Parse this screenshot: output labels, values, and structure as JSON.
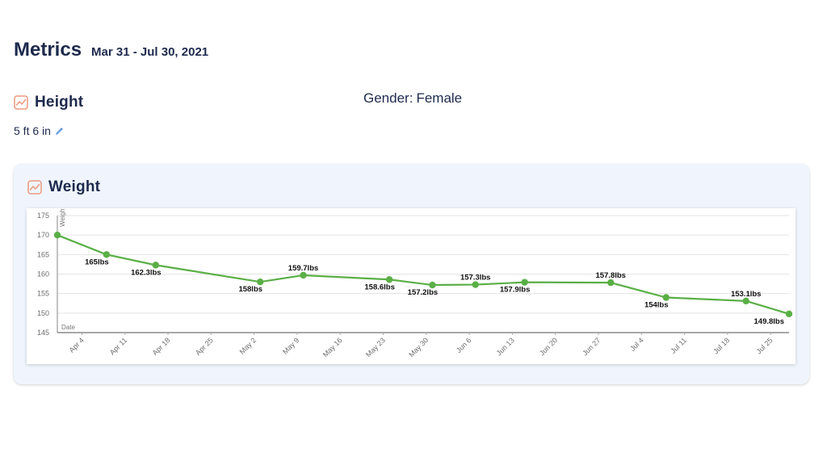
{
  "header": {
    "title": "Metrics",
    "date_range": "Mar 31 - Jul 30, 2021"
  },
  "height": {
    "title": "Height",
    "value": "5 ft 6 in",
    "icon": "line-chart-icon"
  },
  "gender": {
    "label": "Gender:",
    "value": "Female"
  },
  "weight": {
    "title": "Weight",
    "icon": "line-chart-icon"
  },
  "chart_data": {
    "type": "line",
    "ylabel": "Weight",
    "xlabel": "Date",
    "ylim": [
      145,
      175
    ],
    "y_ticks": [
      145,
      150,
      155,
      160,
      165,
      170,
      175
    ],
    "x_ticks": [
      "Apr 4",
      "Apr 11",
      "Apr 18",
      "Apr 25",
      "May 2",
      "May 9",
      "May 16",
      "May 23",
      "May 30",
      "Jun 6",
      "Jun 13",
      "Jun 20",
      "Jun 27",
      "Jul 4",
      "Jul 11",
      "Jul 18",
      "Jul 25"
    ],
    "grid": true,
    "line_color": "#5aaf46",
    "series": [
      {
        "points": [
          {
            "x": "2021-03-31",
            "y": 170,
            "label": ""
          },
          {
            "x": "2021-04-08",
            "y": 165,
            "label": "165lbs"
          },
          {
            "x": "2021-04-16",
            "y": 162.3,
            "label": "162.3lbs"
          },
          {
            "x": "2021-05-03",
            "y": 158,
            "label": "158lbs"
          },
          {
            "x": "2021-05-10",
            "y": 159.7,
            "label": "159.7lbs"
          },
          {
            "x": "2021-05-24",
            "y": 158.6,
            "label": "158.6lbs"
          },
          {
            "x": "2021-05-31",
            "y": 157.2,
            "label": "157.2lbs"
          },
          {
            "x": "2021-06-07",
            "y": 157.3,
            "label": "157.3lbs"
          },
          {
            "x": "2021-06-15",
            "y": 157.9,
            "label": "157.9lbs"
          },
          {
            "x": "2021-06-29",
            "y": 157.8,
            "label": "157.8lbs"
          },
          {
            "x": "2021-07-08",
            "y": 154,
            "label": "154lbs"
          },
          {
            "x": "2021-07-21",
            "y": 153.1,
            "label": "153.1lbs"
          },
          {
            "x": "2021-07-28",
            "y": 149.8,
            "label": "149.8lbs"
          }
        ]
      }
    ]
  }
}
